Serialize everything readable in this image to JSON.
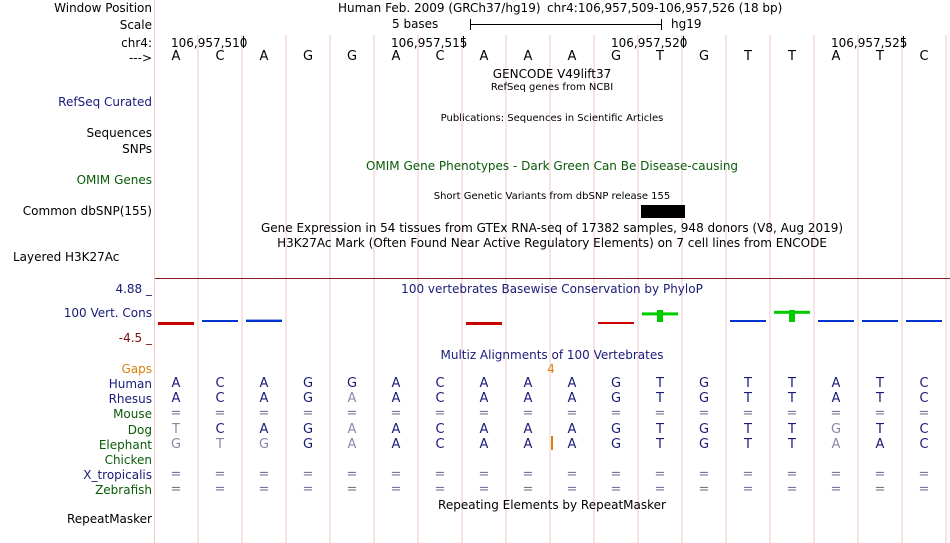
{
  "header": {
    "window_position_label": "Window Position",
    "scale_label": "Scale",
    "chrom_label": "chr4:",
    "strand_label": "--->",
    "assembly": "Human Feb. 2009 (GRCh37/hg19)",
    "position": "chr4:106,957,509-106,957,526 (18 bp)",
    "scale_text": "5 bases",
    "db": "hg19",
    "ticks": [
      "106,957,510",
      "106,957,515",
      "106,957,520",
      "106,957,525"
    ]
  },
  "sequence": [
    "A",
    "C",
    "A",
    "G",
    "G",
    "A",
    "C",
    "A",
    "A",
    "A",
    "G",
    "T",
    "G",
    "T",
    "T",
    "A",
    "T",
    "C"
  ],
  "tracks": {
    "gencode_title": "GENCODE V49lift37",
    "refseq_subtitle": "RefSeq genes from NCBI",
    "refseq_label": "RefSeq Curated",
    "publications_title": "Publications: Sequences in Scientific Articles",
    "sequences_label": "Sequences",
    "snps_label": "SNPs",
    "omim_title": "OMIM Gene Phenotypes - Dark Green Can Be Disease-causing",
    "omim_label": "OMIM Genes",
    "dbsnp_title": "Short Genetic Variants from dbSNP release 155",
    "dbsnp_label": "Common dbSNP(155)",
    "gtex_title": "Gene Expression in 54 tissues from GTEx RNA-seq of 17382 samples, 948 donors (V8, Aug 2019)",
    "h3k27ac_title": "H3K27Ac Mark (Often Found Near Active Regulatory Elements) on 7 cell lines from ENCODE",
    "h3k27ac_label": "Layered H3K27Ac",
    "phylop_title": "100 vertebrates Basewise Conservation by PhyloP",
    "phylop_max": "4.88 _",
    "phylop_label": "100 Vert. Cons",
    "phylop_min": "-4.5 _",
    "multiz_title": "Multiz Alignments of 100 Vertebrates",
    "gaps_label": "Gaps",
    "gaps_value": "4",
    "repeat_title": "Repeating Elements by RepeatMasker",
    "repeat_label": "RepeatMasker"
  },
  "alignments": [
    {
      "species": "Human",
      "bases": [
        "A",
        "C",
        "A",
        "G",
        "G",
        "A",
        "C",
        "A",
        "A",
        "A",
        "G",
        "T",
        "G",
        "T",
        "T",
        "A",
        "T",
        "C"
      ],
      "faint": []
    },
    {
      "species": "Rhesus",
      "bases": [
        "A",
        "C",
        "A",
        "G",
        "A",
        "A",
        "C",
        "A",
        "A",
        "A",
        "G",
        "T",
        "G",
        "T",
        "T",
        "A",
        "T",
        "C"
      ],
      "faint": [
        4
      ]
    },
    {
      "species": "Mouse",
      "bases": [
        "=",
        "=",
        "=",
        "=",
        "=",
        "=",
        "=",
        "=",
        "=",
        "=",
        "=",
        "=",
        "=",
        "=",
        "=",
        "=",
        "=",
        "="
      ],
      "faint": []
    },
    {
      "species": "Dog",
      "bases": [
        "T",
        "C",
        "A",
        "G",
        "A",
        "A",
        "C",
        "A",
        "A",
        "A",
        "G",
        "T",
        "G",
        "T",
        "T",
        "G",
        "T",
        "C"
      ],
      "faint": [
        0,
        4,
        15
      ]
    },
    {
      "species": "Elephant",
      "bases": [
        "G",
        "T",
        "G",
        "G",
        "A",
        "A",
        "C",
        "A",
        "A",
        "",
        "A",
        "G",
        "T",
        "G",
        "T",
        "T",
        "A",
        "A",
        "C"
      ],
      "faint": [
        0,
        1,
        2,
        4,
        16
      ]
    },
    {
      "species": "Chicken",
      "bases": [],
      "faint": []
    },
    {
      "species": "X_tropicalis",
      "bases": [
        "=",
        "=",
        "=",
        "=",
        "=",
        "=",
        "=",
        "=",
        "=",
        "=",
        "=",
        "=",
        "=",
        "=",
        "=",
        "=",
        "=",
        "="
      ],
      "faint": []
    },
    {
      "species": "Zebrafish",
      "bases": [
        "=",
        "=",
        "=",
        "=",
        "=",
        "=",
        "=",
        "=",
        "=",
        "=",
        "=",
        "=",
        "=",
        "=",
        "=",
        "=",
        "=",
        "="
      ],
      "faint": []
    }
  ],
  "colors": {
    "label_navy": "#1a1a78",
    "label_green": "#0a5a0a",
    "gaps_orange": "#d9820a",
    "guide_line": "#f2c8c8",
    "separator": "#8b1a1a",
    "phylop_pos": "#0033cc",
    "phylop_neg": "#cc0000",
    "phylop_green": "#00cc00"
  },
  "phylop_values": [
    -0.5,
    0.2,
    0.3,
    0,
    0,
    0,
    0,
    -0.4,
    0,
    0,
    -0.2,
    1.2,
    0,
    0.1,
    1.4,
    0.2,
    0.1,
    0.2
  ]
}
